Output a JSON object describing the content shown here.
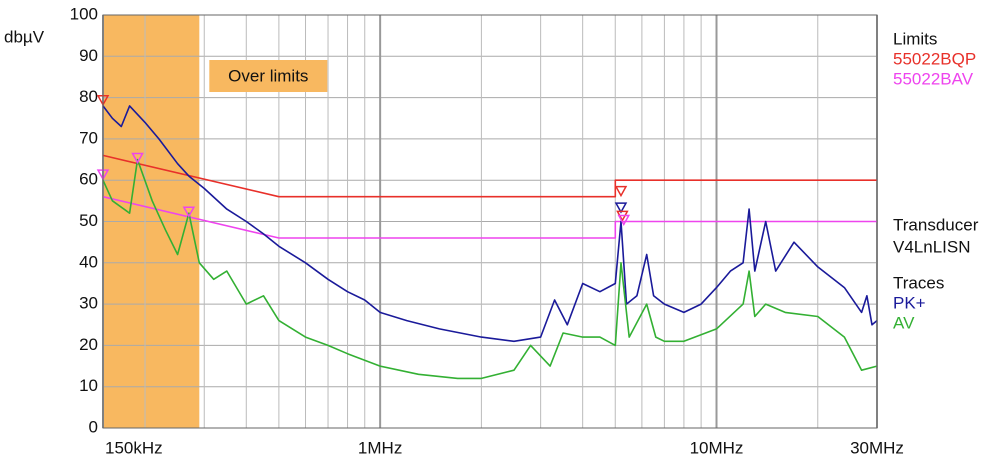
{
  "chart_data": {
    "type": "line",
    "y_label": "dbµV",
    "log_x": true,
    "grid": true,
    "xlim": [
      0.15,
      30
    ],
    "ylim": [
      0,
      100
    ],
    "yticks": [
      0,
      10,
      20,
      30,
      40,
      50,
      60,
      70,
      80,
      90,
      100
    ],
    "xticks": [
      {
        "value": 0.15,
        "label": "150kHz"
      },
      {
        "value": 1,
        "label": "1MHz"
      },
      {
        "value": 10,
        "label": "10MHz"
      },
      {
        "value": 30,
        "label": "30MHz"
      }
    ],
    "xminorticks": [
      0.2,
      0.3,
      0.4,
      0.5,
      0.6,
      0.7,
      0.8,
      0.9,
      2,
      3,
      4,
      5,
      6,
      7,
      8,
      9,
      20
    ],
    "shaded_region": {
      "x": [
        0.15,
        0.29
      ],
      "color": "#f8b860",
      "label": "Over limits"
    },
    "legend_titles": [
      "Limits",
      "Transducer",
      "Traces"
    ],
    "transducer": "V4LnLISN",
    "series": [
      {
        "name": "55022BQP",
        "group": 0,
        "color": "#e8302a",
        "x": [
          0.15,
          0.5,
          5,
          5,
          30
        ],
        "values": [
          66,
          56,
          56,
          60,
          60
        ]
      },
      {
        "name": "55022BAV",
        "group": 0,
        "color": "#ee44ee",
        "x": [
          0.15,
          0.5,
          5,
          5,
          30
        ],
        "values": [
          56,
          46,
          46,
          50,
          50
        ]
      },
      {
        "name": "PK+",
        "group": 2,
        "color": "#1a1a9a",
        "x": [
          0.15,
          0.16,
          0.17,
          0.18,
          0.2,
          0.22,
          0.25,
          0.27,
          0.3,
          0.35,
          0.4,
          0.45,
          0.5,
          0.6,
          0.7,
          0.8,
          0.9,
          1.0,
          1.2,
          1.5,
          2.0,
          2.5,
          3.0,
          3.3,
          3.6,
          4.0,
          4.5,
          5.0,
          5.2,
          5.4,
          5.8,
          6.2,
          6.5,
          7,
          8,
          9,
          10,
          11,
          12,
          12.5,
          13,
          14,
          15,
          17,
          20,
          24,
          27,
          28,
          29,
          30
        ],
        "values": [
          78,
          75,
          73,
          78,
          74,
          70,
          64,
          61,
          58,
          53,
          50,
          47,
          44,
          40,
          36,
          33,
          31,
          28,
          26,
          24,
          22,
          21,
          22,
          31,
          25,
          35,
          33,
          35,
          50,
          30,
          32,
          42,
          32,
          30,
          28,
          30,
          34,
          38,
          40,
          53,
          38,
          50,
          38,
          45,
          39,
          34,
          28,
          32,
          25,
          26
        ]
      },
      {
        "name": "AV",
        "group": 2,
        "color": "#33b033",
        "x": [
          0.15,
          0.16,
          0.18,
          0.19,
          0.21,
          0.23,
          0.25,
          0.27,
          0.29,
          0.32,
          0.35,
          0.4,
          0.45,
          0.5,
          0.6,
          0.7,
          0.8,
          1.0,
          1.3,
          1.7,
          2.0,
          2.5,
          2.8,
          3.2,
          3.5,
          4.0,
          4.5,
          5.0,
          5.2,
          5.5,
          6.2,
          6.6,
          7,
          8,
          10,
          12,
          12.5,
          13,
          14,
          16,
          20,
          24,
          27,
          30
        ],
        "values": [
          60,
          55,
          52,
          65,
          55,
          48,
          42,
          52,
          40,
          36,
          38,
          30,
          32,
          26,
          22,
          20,
          18,
          15,
          13,
          12,
          12,
          14,
          20,
          15,
          23,
          22,
          22,
          20,
          40,
          22,
          30,
          22,
          21,
          21,
          24,
          30,
          38,
          27,
          30,
          28,
          27,
          22,
          14,
          15
        ]
      }
    ],
    "markers": [
      {
        "x": 0.15,
        "y": 79,
        "color": "#e8302a"
      },
      {
        "x": 0.19,
        "y": 65,
        "color": "#ee44ee"
      },
      {
        "x": 0.15,
        "y": 61,
        "color": "#ee44ee"
      },
      {
        "x": 0.27,
        "y": 52,
        "color": "#ee44ee"
      },
      {
        "x": 5.2,
        "y": 57,
        "color": "#e8302a"
      },
      {
        "x": 5.2,
        "y": 53,
        "color": "#1a1a9a"
      },
      {
        "x": 5.25,
        "y": 51,
        "color": "#e8302a"
      },
      {
        "x": 5.3,
        "y": 50,
        "color": "#ee44ee"
      }
    ]
  }
}
